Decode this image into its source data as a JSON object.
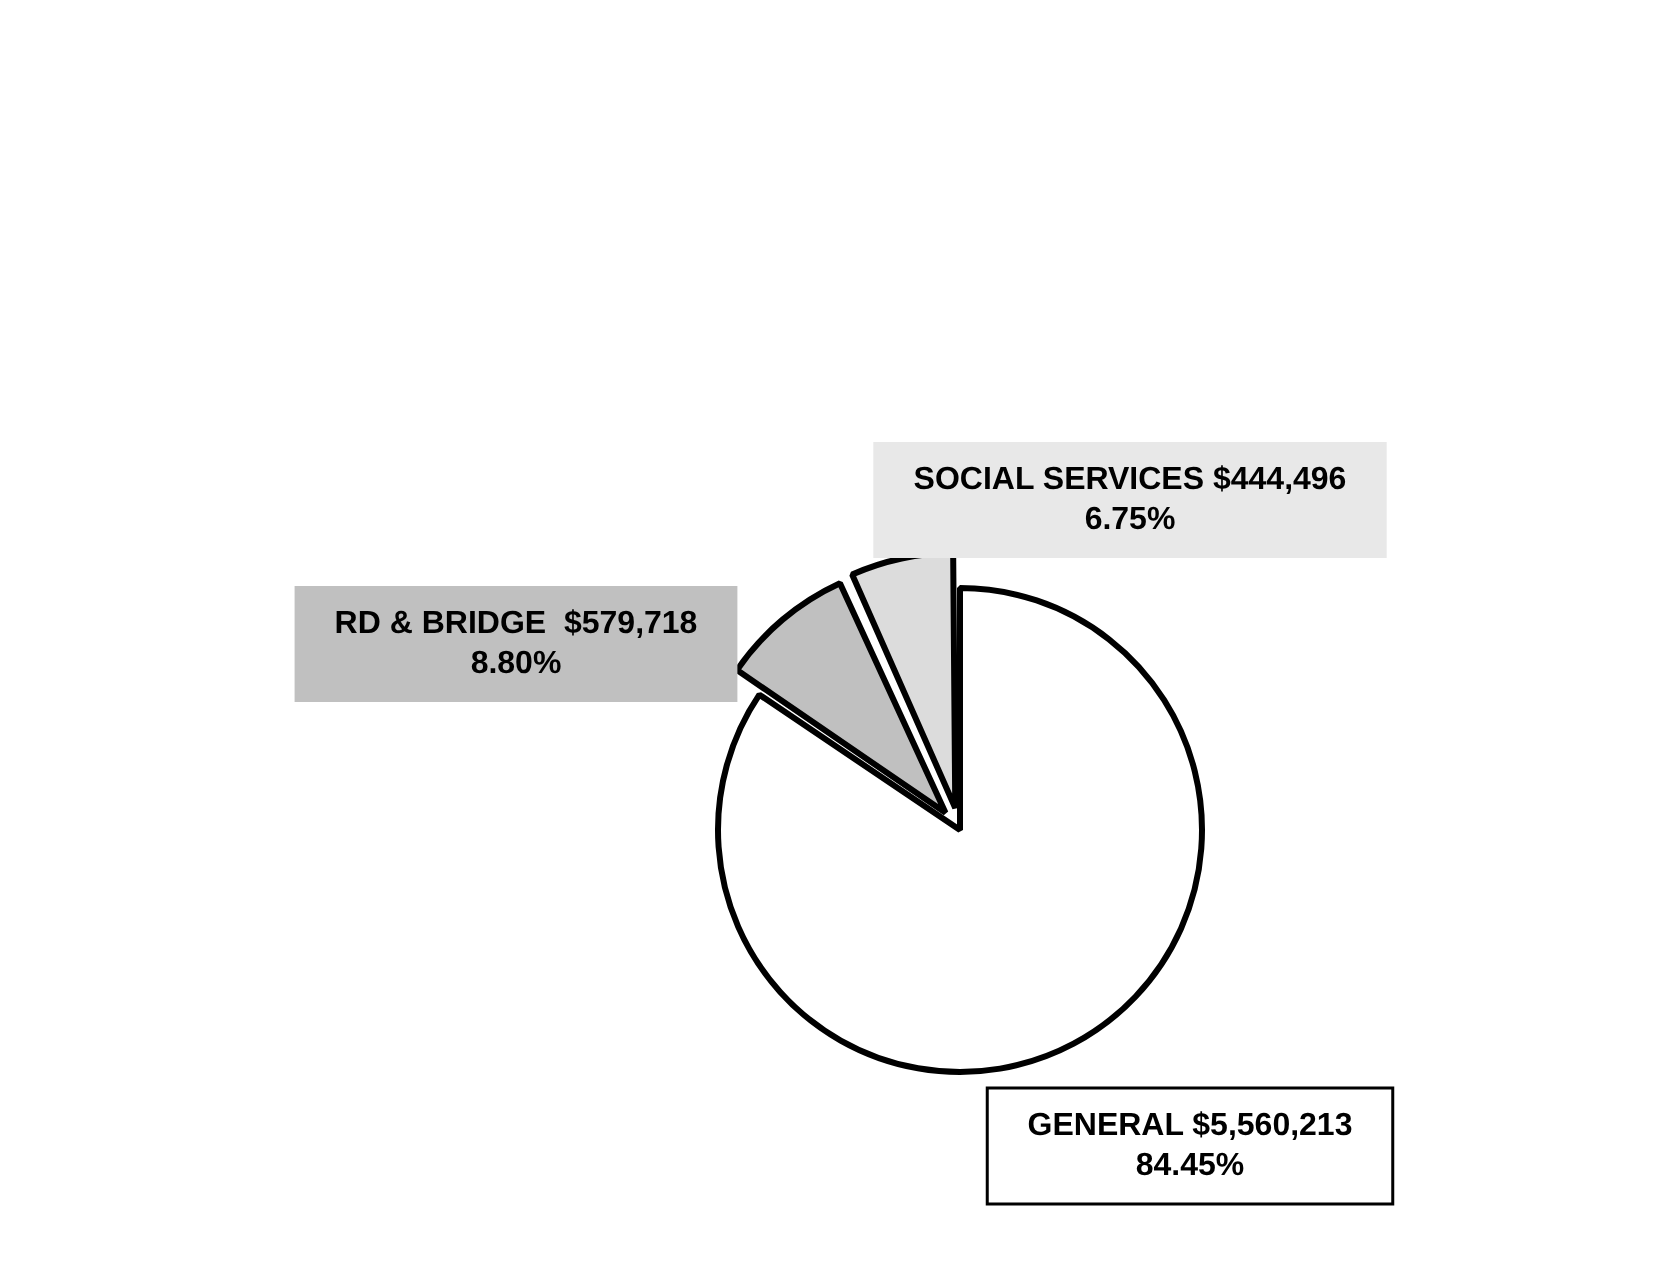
{
  "chart_data": {
    "type": "pie",
    "categories": [
      "GENERAL",
      "RD & BRIDGE",
      "SOCIAL SERVICES"
    ],
    "values": [
      5560213,
      579718,
      444496
    ],
    "colors": [
      "#ffffff",
      "#c0c0c0",
      "#dcdcdc"
    ],
    "value_labels": [
      "$5,560,213 84.45%",
      "$579,718 8.80%",
      "$444,496 6.75%"
    ],
    "legend": false
  }
}
